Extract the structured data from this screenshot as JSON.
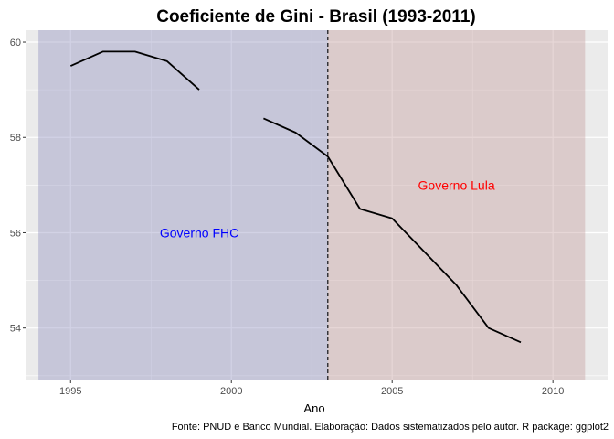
{
  "chart_data": {
    "type": "line",
    "title": "Coeficiente de Gini - Brasil (1993-2011)",
    "xlabel": "Ano",
    "ylabel": "",
    "caption": "Fonte: PNUD e Banco Mundial. Elaboração: Dados sistematizados pelo autor. R package: ggplot2",
    "xlim": [
      1993.6,
      2011.7
    ],
    "ylim": [
      52.9,
      60.25
    ],
    "x_ticks": [
      1995,
      2000,
      2005,
      2010
    ],
    "y_ticks": [
      54,
      56,
      58,
      60
    ],
    "grid": true,
    "series": [
      {
        "segments": [
          {
            "x": [
              1995,
              1996,
              1997,
              1998,
              1999
            ],
            "y": [
              59.5,
              59.8,
              59.8,
              59.6,
              59.0
            ]
          },
          {
            "x": [
              2001,
              2002,
              2003,
              2004,
              2005,
              2006,
              2007,
              2008,
              2009
            ],
            "y": [
              58.4,
              58.1,
              57.6,
              56.5,
              56.3,
              55.6,
              54.9,
              54.0,
              53.7
            ]
          }
        ],
        "color": "#000000"
      }
    ],
    "regions": [
      {
        "label": "Governo FHC",
        "x_start": 1994,
        "x_end": 2003,
        "fill": "#8f8fbd",
        "label_color": "#0000ff",
        "label_x": 1999,
        "label_y": 56.0
      },
      {
        "label": "Governo Lula",
        "x_start": 2003,
        "x_end": 2011,
        "fill": "#c29b9b",
        "label_color": "#ff0000",
        "label_x": 2007,
        "label_y": 57.0
      }
    ],
    "vline": {
      "x": 2003,
      "style": "dashed",
      "color": "#000000"
    },
    "colors": {
      "panel": "#ebebeb",
      "grid": "#ffffff",
      "line": "#000000"
    }
  }
}
